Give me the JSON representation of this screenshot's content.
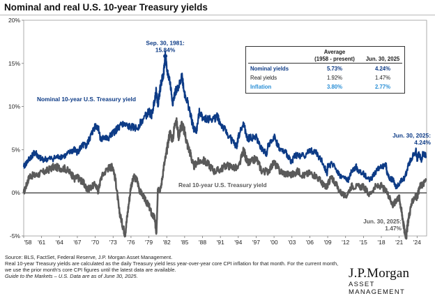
{
  "title": "Nominal and real U.S. 10-year Treasury yields",
  "chart_data": {
    "type": "line",
    "ylim": [
      -5,
      20
    ],
    "xlim": [
      1958.0,
      2025.6
    ],
    "y_ticks": [
      "-5%",
      "0%",
      "5%",
      "10%",
      "15%",
      "20%"
    ],
    "y_tick_values": [
      -5,
      0,
      5,
      10,
      15,
      20
    ],
    "x_tick_labels": [
      "'58",
      "'61",
      "'64",
      "'67",
      "'70",
      "'73",
      "'76",
      "'79",
      "'82",
      "'85",
      "'88",
      "'91",
      "'94",
      "'97",
      "'00",
      "'03",
      "'06",
      "'09",
      "'12",
      "'15",
      "'18",
      "'21",
      "'24"
    ],
    "x_tick_years": [
      1958,
      1961,
      1964,
      1967,
      1970,
      1973,
      1976,
      1979,
      1982,
      1985,
      1988,
      1991,
      1994,
      1997,
      2000,
      2003,
      2006,
      2009,
      2012,
      2015,
      2018,
      2021,
      2024
    ],
    "colors": {
      "nominal": "#0d3b86",
      "real": "#5a5a5a",
      "inflation": "#2a8fd6",
      "zero_line": "#000000"
    },
    "series": [
      {
        "name": "Nominal 10-year U.S. Treasury yield",
        "x": [
          1958.0,
          1958.5,
          1959.0,
          1959.5,
          1960.0,
          1960.5,
          1961.0,
          1962.0,
          1963.0,
          1964.0,
          1965.0,
          1966.0,
          1966.5,
          1967.0,
          1967.5,
          1968.0,
          1968.5,
          1969.0,
          1969.5,
          1970.0,
          1970.5,
          1971.0,
          1971.5,
          1972.0,
          1973.0,
          1973.5,
          1974.0,
          1974.5,
          1975.0,
          1976.0,
          1977.0,
          1978.0,
          1979.0,
          1979.5,
          1980.0,
          1980.25,
          1980.5,
          1981.0,
          1981.5,
          1981.75,
          1982.0,
          1982.5,
          1983.0,
          1983.5,
          1984.0,
          1984.5,
          1985.0,
          1985.5,
          1986.0,
          1986.5,
          1987.0,
          1987.5,
          1988.0,
          1989.0,
          1990.0,
          1990.5,
          1991.0,
          1992.0,
          1993.0,
          1993.75,
          1994.0,
          1994.9,
          1995.5,
          1996.0,
          1997.0,
          1998.0,
          1998.75,
          1999.0,
          2000.0,
          2001.0,
          2002.0,
          2003.0,
          2003.5,
          2004.0,
          2005.0,
          2006.0,
          2007.0,
          2008.0,
          2008.9,
          2009.0,
          2010.0,
          2011.0,
          2012.0,
          2012.5,
          2013.0,
          2013.8,
          2014.0,
          2015.0,
          2016.0,
          2016.5,
          2017.0,
          2018.0,
          2018.8,
          2019.0,
          2019.5,
          2020.0,
          2020.5,
          2021.0,
          2021.5,
          2022.0,
          2022.5,
          2023.0,
          2023.8,
          2024.0,
          2024.3,
          2024.7,
          2025.0,
          2025.5
        ],
        "values": [
          3.0,
          3.5,
          4.0,
          4.4,
          4.7,
          4.1,
          3.9,
          3.9,
          4.0,
          4.2,
          4.3,
          4.8,
          5.0,
          4.7,
          5.2,
          5.5,
          5.4,
          6.2,
          7.0,
          7.8,
          7.6,
          6.0,
          6.5,
          6.2,
          6.9,
          7.3,
          7.5,
          8.0,
          7.8,
          7.6,
          7.5,
          8.5,
          9.4,
          9.0,
          11.0,
          11.8,
          10.2,
          12.5,
          14.0,
          15.84,
          14.3,
          13.0,
          10.5,
          11.8,
          12.0,
          13.8,
          11.5,
          10.5,
          9.0,
          7.4,
          7.2,
          9.5,
          8.8,
          8.5,
          8.6,
          8.9,
          8.0,
          7.0,
          6.0,
          5.3,
          6.5,
          8.0,
          6.2,
          6.4,
          6.4,
          5.0,
          4.5,
          5.5,
          6.5,
          5.0,
          4.6,
          3.6,
          4.4,
          4.3,
          4.3,
          4.9,
          4.7,
          3.7,
          2.2,
          3.2,
          3.3,
          2.0,
          1.6,
          1.5,
          2.5,
          3.0,
          2.6,
          2.2,
          1.5,
          1.8,
          2.4,
          3.1,
          3.2,
          2.1,
          1.6,
          1.5,
          0.6,
          1.1,
          1.5,
          1.8,
          3.2,
          3.9,
          4.9,
          3.9,
          4.5,
          3.8,
          4.6,
          4.24
        ]
      },
      {
        "name": "Real 10-year U.S. Treasury yield",
        "x": [
          1958.0,
          1958.5,
          1959.0,
          1960.0,
          1961.0,
          1962.0,
          1963.0,
          1964.0,
          1965.0,
          1966.0,
          1966.5,
          1967.0,
          1967.5,
          1968.0,
          1968.5,
          1969.0,
          1970.0,
          1970.5,
          1971.0,
          1972.0,
          1972.6,
          1973.0,
          1973.5,
          1974.0,
          1974.5,
          1975.0,
          1975.5,
          1976.0,
          1976.5,
          1977.0,
          1977.5,
          1978.0,
          1978.5,
          1979.0,
          1979.5,
          1980.0,
          1980.25,
          1980.5,
          1981.0,
          1981.5,
          1982.0,
          1982.5,
          1983.0,
          1983.5,
          1984.0,
          1984.5,
          1985.0,
          1985.5,
          1986.0,
          1986.5,
          1987.0,
          1988.0,
          1989.0,
          1990.0,
          1991.0,
          1992.0,
          1993.0,
          1994.0,
          1994.9,
          1995.5,
          1996.0,
          1997.0,
          1998.0,
          1999.0,
          2000.0,
          2001.0,
          2002.0,
          2003.0,
          2004.0,
          2005.0,
          2006.0,
          2007.0,
          2008.0,
          2008.6,
          2009.0,
          2009.5,
          2010.0,
          2011.0,
          2012.0,
          2013.0,
          2014.0,
          2015.0,
          2016.0,
          2017.0,
          2018.0,
          2019.0,
          2019.5,
          2020.0,
          2020.5,
          2021.0,
          2021.3,
          2021.6,
          2021.9,
          2022.2,
          2022.5,
          2023.0,
          2023.5,
          2024.0,
          2024.5,
          2025.0,
          2025.5
        ],
        "values": [
          0.0,
          1.0,
          2.0,
          2.0,
          2.3,
          2.6,
          3.0,
          2.9,
          2.8,
          2.2,
          1.6,
          1.8,
          1.5,
          1.2,
          0.5,
          0.5,
          1.0,
          0.2,
          1.8,
          2.8,
          3.0,
          3.0,
          1.0,
          -2.0,
          -3.5,
          -4.8,
          -2.0,
          0.8,
          1.8,
          1.5,
          0.2,
          -0.3,
          -1.0,
          -1.5,
          -2.5,
          -3.0,
          -5.0,
          0.5,
          0.5,
          3.0,
          4.8,
          7.0,
          6.2,
          8.7,
          6.6,
          8.0,
          7.0,
          5.5,
          4.5,
          3.0,
          3.5,
          3.8,
          3.3,
          2.5,
          2.7,
          3.2,
          3.0,
          2.8,
          5.0,
          3.5,
          3.5,
          4.0,
          2.5,
          2.5,
          3.5,
          2.5,
          2.2,
          2.1,
          2.5,
          2.0,
          2.3,
          2.0,
          1.2,
          0.6,
          0.9,
          1.7,
          1.5,
          0.2,
          -0.5,
          0.8,
          0.7,
          0.7,
          -0.2,
          0.7,
          0.8,
          0.0,
          -0.7,
          -1.5,
          -0.8,
          -0.5,
          -1.8,
          -3.0,
          -4.5,
          -5.0,
          -3.2,
          -1.5,
          -0.5,
          -0.5,
          0.8,
          1.0,
          1.47
        ]
      }
    ],
    "annotations": {
      "peak_label_1": "Sep. 30, 1981:",
      "peak_label_2": "15.84%",
      "peak": {
        "x": 1981.75,
        "y": 15.84
      },
      "nominal_series_label": "Nominal  10-year U.S.  Treasury yield",
      "real_series_label": "Real 10-year U.S. Treasury yield",
      "nominal_end_label_1": "Jun. 30, 2025:",
      "nominal_end_label_2": "4.24%",
      "real_end_label_1": "Jun. 30, 2025:",
      "real_end_label_2": "1.47%"
    }
  },
  "avg_table": {
    "header_1": "Average",
    "header_2": "(1958 - present)",
    "header_3": "Jun. 30, 2025",
    "rows": [
      {
        "label": "Nominal yields",
        "avg": "5.73%",
        "current": "4.24%",
        "color": "#0d3b86",
        "bold": true
      },
      {
        "label": "Real yields",
        "avg": "1.92%",
        "current": "1.47%",
        "color": "#1a1a1a",
        "bold": false
      },
      {
        "label": "Inflation",
        "avg": "3.80%",
        "current": "2.77%",
        "color": "#2a8fd6",
        "bold": true
      }
    ]
  },
  "footnotes": {
    "line1": "Source: BLS, FactSet, Federal Reserve, J.P. Morgan Asset Management.",
    "line2": "Real 10-year Treasury yields are calculated as the daily Treasury yield less year-over-year core CPI inflation for that month. For the current month,",
    "line3": "we use the prior month’s core CPI figures until the latest data are available.",
    "line4": "Guide to the Markets – U.S. Data are as of June 30, 2025."
  },
  "logo": {
    "name": "J.P.Morgan",
    "sub": "ASSET MANAGEMENT"
  }
}
